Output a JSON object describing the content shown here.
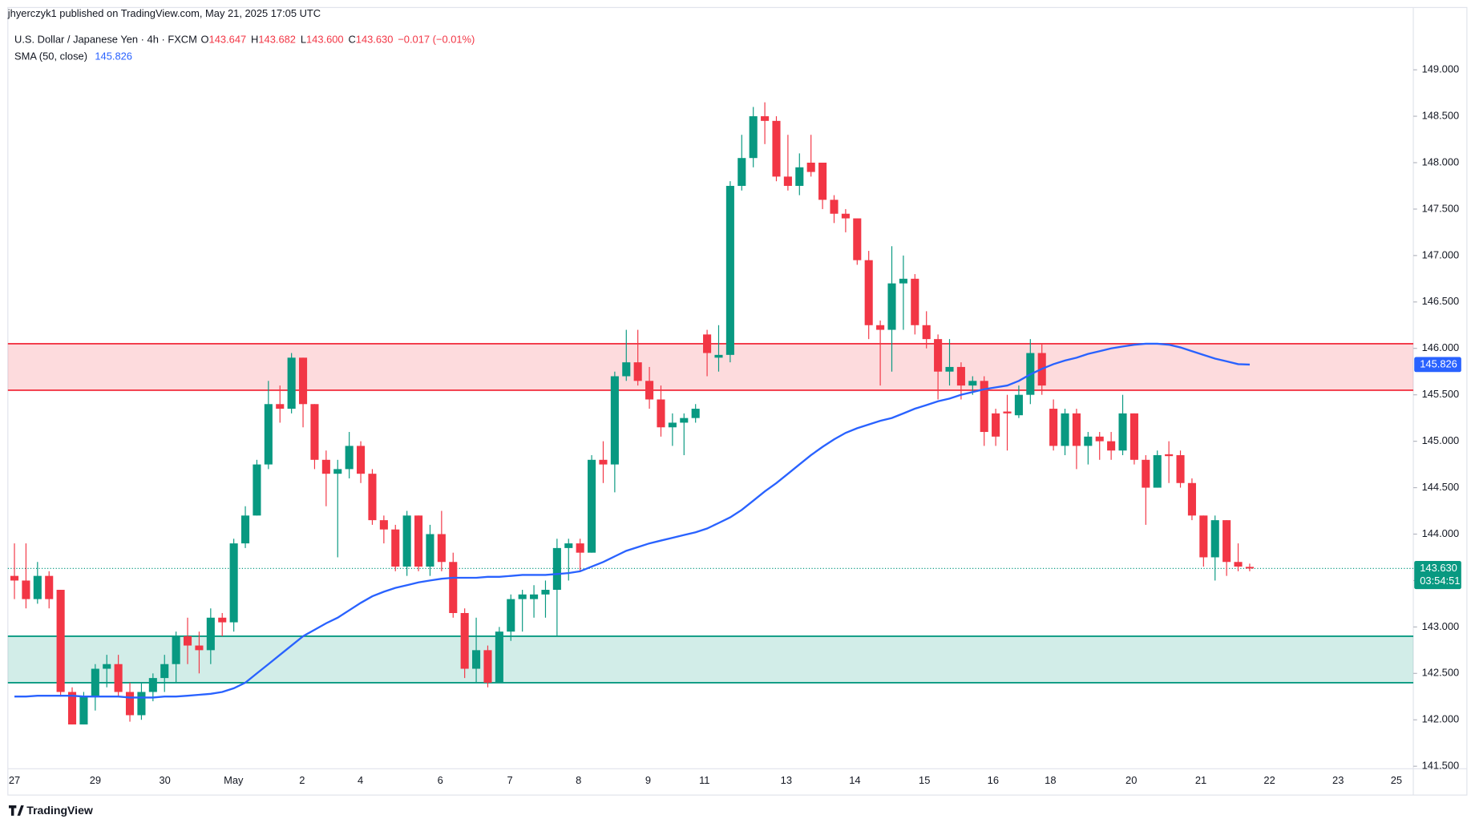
{
  "header": {
    "published": "jhyerczyk1 published on TradingView.com, May 21, 2025 17:05 UTC"
  },
  "footer": "TradingView",
  "chart_data": {
    "type": "candlestick",
    "symbol": "U.S. Dollar / Japanese Yen · 4h · FXCM",
    "legend_items": [
      {
        "key": "O",
        "value": "143.647"
      },
      {
        "key": "H",
        "value": "143.682"
      },
      {
        "key": "L",
        "value": "143.600"
      },
      {
        "key": "C",
        "value": "143.630"
      }
    ],
    "change": "−0.017 (−0.01%)",
    "up_color": "#089981",
    "down_color": "#f23645",
    "open": [
      143.55,
      143.5,
      143.3,
      143.55,
      143.4,
      142.3,
      141.95,
      142.25,
      142.55,
      142.6,
      142.3,
      142.05,
      142.3,
      142.45,
      142.6,
      142.9,
      142.8,
      142.75,
      143.1,
      143.05,
      143.9,
      144.2,
      144.75,
      145.4,
      145.35,
      145.9,
      145.4,
      144.8,
      144.65,
      144.7,
      144.95,
      144.65,
      144.15,
      144.05,
      143.65,
      144.2,
      143.65,
      144.0,
      143.7,
      143.15,
      142.55,
      142.75,
      142.4,
      142.95,
      143.3,
      143.3,
      143.35,
      143.4,
      143.85,
      143.9,
      143.8,
      144.8,
      144.75,
      145.7,
      145.85,
      145.65,
      145.45,
      145.15,
      145.2,
      145.25,
      146.15,
      145.9,
      145.93,
      147.75,
      148.05,
      148.5,
      148.45,
      147.85,
      147.75,
      148.0,
      148.0,
      147.6,
      147.45,
      147.4,
      146.95,
      146.25,
      146.2,
      146.7,
      146.75,
      146.25,
      146.1,
      145.75,
      145.8,
      145.6,
      145.65,
      145.3,
      145.32,
      145.28,
      145.5,
      145.95,
      145.35,
      144.95,
      145.3,
      144.95,
      145.05,
      145.0,
      144.9,
      145.3,
      144.8,
      144.5,
      144.86,
      144.85,
      144.55,
      144.2,
      143.75,
      144.15,
      143.7,
      143.647
    ],
    "high": [
      143.9,
      143.9,
      143.7,
      143.6,
      143.4,
      142.35,
      142.3,
      142.6,
      142.7,
      142.7,
      142.4,
      142.4,
      142.5,
      142.7,
      142.95,
      143.1,
      142.95,
      143.2,
      143.15,
      143.95,
      144.3,
      144.8,
      145.65,
      145.6,
      145.95,
      145.9,
      145.4,
      144.9,
      144.8,
      145.1,
      145.0,
      144.7,
      144.2,
      144.1,
      144.25,
      144.2,
      144.1,
      144.25,
      143.8,
      143.2,
      143.1,
      142.8,
      143.0,
      143.35,
      143.4,
      143.45,
      143.5,
      143.95,
      143.95,
      143.95,
      144.85,
      145.0,
      145.75,
      146.2,
      146.2,
      145.8,
      145.6,
      145.3,
      145.3,
      145.4,
      146.2,
      146.25,
      147.8,
      148.3,
      148.6,
      148.65,
      148.5,
      148.3,
      148.1,
      148.3,
      148.0,
      147.65,
      147.5,
      147.4,
      147.05,
      146.3,
      147.1,
      147.0,
      146.8,
      146.4,
      146.15,
      146.1,
      145.85,
      145.7,
      145.7,
      145.35,
      145.5,
      145.6,
      146.1,
      146.05,
      145.45,
      145.35,
      145.35,
      145.1,
      145.1,
      145.1,
      145.5,
      145.3,
      144.85,
      144.9,
      145.0,
      144.9,
      144.6,
      144.2,
      144.2,
      144.15,
      143.9,
      143.682
    ],
    "low": [
      143.3,
      143.2,
      143.25,
      143.2,
      142.25,
      141.95,
      141.95,
      142.1,
      142.35,
      142.25,
      141.98,
      142.0,
      142.2,
      142.3,
      142.4,
      142.6,
      142.5,
      142.6,
      142.9,
      142.95,
      143.85,
      144.2,
      144.7,
      145.2,
      145.3,
      145.15,
      144.7,
      144.3,
      143.75,
      144.6,
      144.55,
      144.1,
      143.9,
      143.6,
      143.55,
      143.6,
      143.55,
      143.6,
      143.1,
      142.45,
      142.4,
      142.35,
      142.4,
      142.85,
      142.95,
      143.1,
      143.1,
      142.9,
      143.5,
      143.6,
      143.8,
      144.55,
      144.45,
      145.65,
      145.6,
      145.35,
      145.05,
      144.95,
      144.85,
      145.2,
      145.7,
      145.75,
      145.85,
      147.7,
      147.95,
      148.2,
      147.8,
      147.7,
      147.65,
      147.85,
      147.5,
      147.35,
      147.25,
      146.9,
      146.1,
      145.6,
      145.75,
      146.2,
      146.15,
      146.0,
      145.45,
      145.6,
      145.45,
      145.5,
      144.95,
      144.95,
      144.9,
      145.25,
      145.4,
      145.5,
      144.9,
      144.85,
      144.7,
      144.75,
      144.8,
      144.8,
      144.85,
      144.75,
      144.1,
      144.5,
      144.55,
      144.5,
      144.15,
      143.65,
      143.5,
      143.55,
      143.6,
      143.6
    ],
    "close": [
      143.5,
      143.3,
      143.55,
      143.3,
      142.3,
      141.95,
      142.25,
      142.55,
      142.6,
      142.3,
      142.05,
      142.3,
      142.45,
      142.6,
      142.9,
      142.8,
      142.75,
      143.1,
      143.05,
      143.9,
      144.2,
      144.75,
      145.4,
      145.35,
      145.9,
      145.4,
      144.8,
      144.65,
      144.7,
      144.95,
      144.65,
      144.15,
      144.05,
      143.65,
      144.2,
      143.65,
      144.0,
      143.7,
      143.15,
      142.55,
      142.75,
      142.4,
      142.95,
      143.3,
      143.35,
      143.35,
      143.4,
      143.85,
      143.9,
      143.8,
      144.8,
      144.75,
      145.7,
      145.85,
      145.65,
      145.45,
      145.15,
      145.2,
      145.25,
      145.35,
      145.95,
      145.93,
      147.75,
      148.05,
      148.5,
      148.45,
      147.85,
      147.75,
      147.95,
      147.9,
      147.6,
      147.45,
      147.4,
      146.95,
      146.25,
      146.2,
      146.7,
      146.75,
      146.25,
      146.1,
      145.75,
      145.8,
      145.6,
      145.65,
      145.1,
      145.05,
      145.3,
      145.5,
      145.95,
      145.6,
      144.95,
      145.3,
      144.95,
      145.05,
      145.0,
      144.9,
      145.3,
      144.8,
      144.5,
      144.85,
      144.84,
      144.55,
      144.2,
      143.75,
      144.15,
      143.7,
      143.65,
      143.63
    ],
    "sma": {
      "name": "SMA (50, close)",
      "color": "#2962ff",
      "value_label": "145.826",
      "values": [
        142.25,
        142.25,
        142.26,
        142.26,
        142.26,
        142.26,
        142.25,
        142.25,
        142.25,
        142.25,
        142.24,
        142.24,
        142.24,
        142.25,
        142.25,
        142.26,
        142.27,
        142.28,
        142.3,
        142.34,
        142.4,
        142.5,
        142.6,
        142.7,
        142.8,
        142.9,
        142.97,
        143.04,
        143.1,
        143.18,
        143.26,
        143.33,
        143.38,
        143.42,
        143.45,
        143.48,
        143.5,
        143.52,
        143.53,
        143.53,
        143.53,
        143.54,
        143.54,
        143.55,
        143.56,
        143.56,
        143.56,
        143.57,
        143.58,
        143.6,
        143.65,
        143.7,
        143.76,
        143.82,
        143.86,
        143.9,
        143.93,
        143.96,
        143.99,
        144.02,
        144.06,
        144.12,
        144.18,
        144.26,
        144.36,
        144.46,
        144.55,
        144.65,
        144.75,
        144.85,
        144.94,
        145.02,
        145.09,
        145.14,
        145.18,
        145.22,
        145.25,
        145.3,
        145.35,
        145.39,
        145.43,
        145.46,
        145.5,
        145.53,
        145.56,
        145.58,
        145.6,
        145.65,
        145.72,
        145.78,
        145.83,
        145.87,
        145.9,
        145.94,
        145.97,
        146.0,
        146.02,
        146.04,
        146.05,
        146.05,
        146.04,
        146.01,
        145.97,
        145.93,
        145.89,
        145.86,
        145.83,
        145.826
      ]
    },
    "last_price": {
      "value": 143.63,
      "label": "143.630",
      "countdown": "03:54:51",
      "color": "#089981"
    },
    "zones": [
      {
        "low": 145.55,
        "high": 146.05,
        "color": "#f23645"
      },
      {
        "low": 142.4,
        "high": 142.9,
        "color": "#089981"
      }
    ],
    "ylim": [
      141.2,
      149.6
    ],
    "yticks": [
      {
        "value": 141.5,
        "label": "141.500"
      },
      {
        "value": 142,
        "label": "142.000"
      },
      {
        "value": 142.5,
        "label": "142.500"
      },
      {
        "value": 143,
        "label": "143.000"
      },
      {
        "value": 143.5,
        "label": "143.500"
      },
      {
        "value": 144,
        "label": "144.000"
      },
      {
        "value": 144.5,
        "label": "144.500"
      },
      {
        "value": 145,
        "label": "145.000"
      },
      {
        "value": 145.5,
        "label": "145.500"
      },
      {
        "value": 146,
        "label": "146.000"
      },
      {
        "value": 146.5,
        "label": "146.500"
      },
      {
        "value": 147,
        "label": "147.000"
      },
      {
        "value": 147.5,
        "label": "147.500"
      },
      {
        "value": 148,
        "label": "148.000"
      },
      {
        "value": 148.5,
        "label": "148.500"
      },
      {
        "value": 149,
        "label": "149.000"
      }
    ],
    "x_labels": [
      "27",
      "29",
      "30",
      "May",
      "2",
      "4",
      "6",
      "7",
      "8",
      "9",
      "11",
      "13",
      "14",
      "15",
      "16",
      "18",
      "20",
      "21",
      "22",
      "23",
      "25"
    ]
  }
}
